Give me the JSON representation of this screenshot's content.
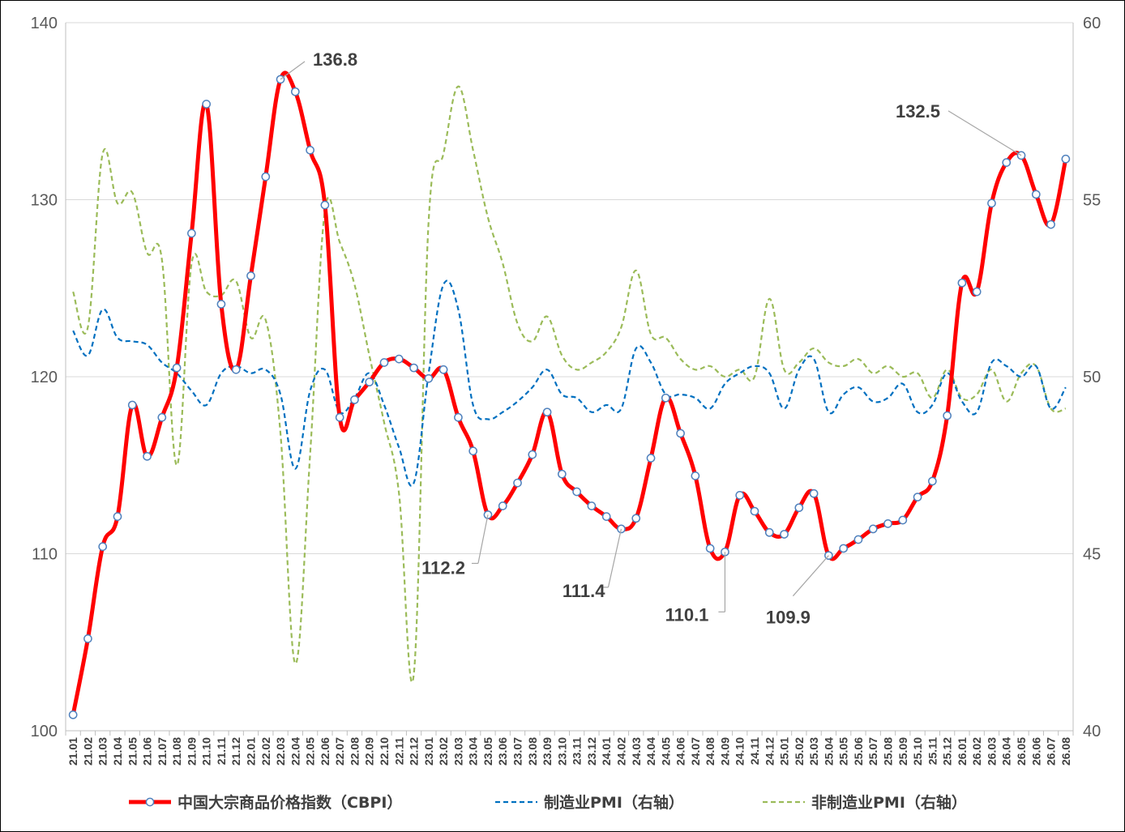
{
  "chart_data": {
    "type": "line",
    "x": [
      "21.01",
      "21.02",
      "21.03",
      "21.04",
      "21.05",
      "21.06",
      "21.07",
      "21.08",
      "21.09",
      "21.10",
      "21.11",
      "21.12",
      "22.01",
      "22.02",
      "22.03",
      "22.04",
      "22.05",
      "22.06",
      "22.07",
      "22.08",
      "22.09",
      "22.10",
      "22.11",
      "22.12",
      "23.01",
      "23.02",
      "23.03",
      "23.04",
      "23.05",
      "23.06",
      "23.07",
      "23.08",
      "23.09",
      "23.10",
      "23.11",
      "23.12",
      "24.01",
      "24.02",
      "24.03",
      "24.04",
      "24.05",
      "24.06",
      "24.07",
      "24.08",
      "24.09",
      "24.10",
      "24.11",
      "24.12",
      "25.01",
      "25.02",
      "25.03",
      "25.04",
      "25.05",
      "25.06",
      "25.07",
      "25.08",
      "25.09",
      "25.10",
      "25.11",
      "25.12",
      "26.01",
      "26.02",
      "26.03",
      "26.04",
      "26.05",
      "26.06",
      "26.07",
      "26.08"
    ],
    "y_left": {
      "min": 100,
      "max": 140,
      "step": 10,
      "ticks": [
        "100",
        "110",
        "120",
        "130",
        "140"
      ]
    },
    "y_right": {
      "min": 40,
      "max": 60,
      "step": 5,
      "ticks": [
        "40",
        "45",
        "50",
        "55",
        "60"
      ]
    },
    "grid": "horizontal",
    "legend_position": "bottom",
    "series": [
      {
        "name": "中国大宗商品价格指数（CBPI）",
        "axis": "left",
        "color": "#ff0000",
        "style": "solid-markers",
        "values": [
          100.9,
          105.2,
          110.4,
          112.1,
          118.4,
          115.5,
          117.7,
          120.5,
          128.1,
          135.4,
          124.1,
          120.4,
          125.7,
          131.3,
          136.8,
          136.1,
          132.8,
          129.7,
          117.7,
          118.7,
          119.7,
          120.8,
          121.0,
          120.5,
          119.9,
          120.4,
          117.7,
          115.8,
          112.2,
          112.7,
          114.0,
          115.6,
          118.0,
          114.5,
          113.5,
          112.7,
          112.1,
          111.4,
          112.0,
          115.4,
          118.8,
          116.8,
          114.4,
          110.3,
          110.1,
          113.3,
          112.4,
          111.2,
          111.1,
          112.6,
          113.4,
          109.9,
          110.3,
          110.8,
          111.4,
          111.7,
          111.9,
          113.2,
          114.1,
          117.8,
          125.3,
          124.8,
          129.8,
          132.1,
          132.5,
          130.3,
          128.6,
          132.3
        ]
      },
      {
        "name": "制造业PMI（右轴）",
        "axis": "right",
        "color": "#0070c0",
        "style": "dashed",
        "values": [
          51.3,
          50.6,
          51.9,
          51.1,
          51.0,
          50.9,
          50.4,
          50.1,
          49.6,
          49.2,
          50.1,
          50.3,
          50.1,
          50.2,
          49.5,
          47.4,
          49.6,
          50.2,
          49.0,
          49.4,
          50.1,
          49.2,
          48.0,
          47.0,
          50.1,
          52.6,
          51.9,
          49.2,
          48.8,
          49.0,
          49.3,
          49.7,
          50.2,
          49.5,
          49.4,
          49.0,
          49.2,
          49.1,
          50.8,
          50.4,
          49.5,
          49.5,
          49.4,
          49.1,
          49.8,
          50.1,
          50.3,
          50.1,
          49.1,
          50.2,
          50.5,
          49.0,
          49.5,
          49.7,
          49.3,
          49.4,
          49.8,
          49.0,
          49.2,
          50.1,
          49.3,
          49.0,
          50.4,
          50.3,
          50.0,
          50.3,
          49.1,
          49.7
        ]
      },
      {
        "name": "非制造业PMI（右轴）",
        "axis": "right",
        "color": "#9bbb59",
        "style": "dashed",
        "values": [
          52.4,
          51.4,
          56.3,
          54.9,
          55.2,
          53.5,
          53.3,
          47.5,
          53.2,
          52.4,
          52.3,
          52.7,
          51.1,
          51.6,
          48.4,
          41.9,
          47.8,
          54.7,
          53.8,
          52.6,
          50.6,
          48.7,
          46.7,
          41.6,
          54.4,
          56.3,
          58.2,
          56.4,
          54.5,
          53.2,
          51.5,
          51.0,
          51.7,
          50.6,
          50.2,
          50.4,
          50.7,
          51.4,
          53.0,
          51.2,
          51.1,
          50.5,
          50.2,
          50.3,
          50.0,
          50.2,
          50.0,
          52.2,
          50.2,
          50.4,
          50.8,
          50.4,
          50.3,
          50.5,
          50.1,
          50.3,
          50.0,
          50.1,
          49.4,
          50.2,
          49.4,
          49.5,
          50.2,
          49.3,
          50.1,
          50.3,
          49.1,
          49.1
        ]
      }
    ],
    "annotations": [
      {
        "label": "136.8",
        "index": 14
      },
      {
        "label": "112.2",
        "index": 28
      },
      {
        "label": "111.4",
        "index": 37
      },
      {
        "label": "110.1",
        "index": 44
      },
      {
        "label": "109.9",
        "index": 51
      },
      {
        "label": "132.5",
        "index": 64
      }
    ]
  }
}
